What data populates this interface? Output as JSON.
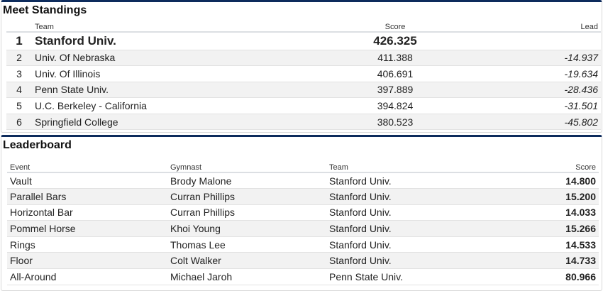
{
  "standings": {
    "title": "Meet Standings",
    "headers": {
      "team": "Team",
      "score": "Score",
      "lead": "Lead"
    },
    "rows": [
      {
        "rank": "1",
        "team": "Stanford Univ.",
        "score": "426.325",
        "lead": ""
      },
      {
        "rank": "2",
        "team": "Univ. Of Nebraska",
        "score": "411.388",
        "lead": "-14.937"
      },
      {
        "rank": "3",
        "team": "Univ. Of Illinois",
        "score": "406.691",
        "lead": "-19.634"
      },
      {
        "rank": "4",
        "team": "Penn State Univ.",
        "score": "397.889",
        "lead": "-28.436"
      },
      {
        "rank": "5",
        "team": "U.C. Berkeley - California",
        "score": "394.824",
        "lead": "-31.501"
      },
      {
        "rank": "6",
        "team": "Springfield College",
        "score": "380.523",
        "lead": "-45.802"
      }
    ]
  },
  "leaderboard": {
    "title": "Leaderboard",
    "headers": {
      "event": "Event",
      "gymnast": "Gymnast",
      "team": "Team",
      "score": "Score"
    },
    "rows": [
      {
        "event": "Vault",
        "gymnast": "Brody Malone",
        "team": "Stanford Univ.",
        "score": "14.800"
      },
      {
        "event": "Parallel Bars",
        "gymnast": "Curran Phillips",
        "team": "Stanford Univ.",
        "score": "15.200"
      },
      {
        "event": "Horizontal Bar",
        "gymnast": "Curran Phillips",
        "team": "Stanford Univ.",
        "score": "14.033"
      },
      {
        "event": "Pommel Horse",
        "gymnast": "Khoi Young",
        "team": "Stanford Univ.",
        "score": "15.266"
      },
      {
        "event": "Rings",
        "gymnast": "Thomas Lee",
        "team": "Stanford Univ.",
        "score": "14.533"
      },
      {
        "event": "Floor",
        "gymnast": "Colt Walker",
        "team": "Stanford Univ.",
        "score": "14.733"
      },
      {
        "event": "All-Around",
        "gymnast": "Michael Jaroh",
        "team": "Penn State Univ.",
        "score": "80.966"
      }
    ]
  },
  "colors": {
    "accent": "#0d2b5c",
    "row_alt": "#f2f2f2"
  }
}
